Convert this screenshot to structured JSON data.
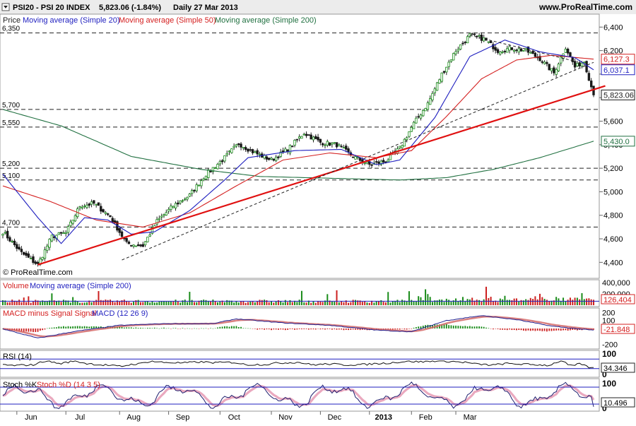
{
  "header": {
    "symbol": "PSI20 - PSI 20 INDEX",
    "quote": "5,823.06 (-1.84%)",
    "period": "Daily  27 Mar 2013",
    "site": "www.ProRealTime.com"
  },
  "copyright": "© ProRealTime.com",
  "colors": {
    "up": "#1a8c1a",
    "down": "#1a1a1a",
    "ma20": "#1f1fbf",
    "ma50": "#d42020",
    "ma200": "#207040",
    "trend": "#e01010",
    "volume_label": "#d42020",
    "macd_signal": "#d46a6a",
    "stoch_fill": "#e8a0b8"
  },
  "chart_data": [
    {
      "type": "candlestick",
      "panel": "price",
      "legend": [
        "Price",
        "Moving average (Simple 20)",
        "Moving average (Simple 50)",
        "Moving average (Simple 200)"
      ],
      "ylim": [
        4300,
        6450
      ],
      "y_ticks": [
        4400,
        4600,
        4800,
        5000,
        5200,
        5400,
        5600,
        5800,
        6000,
        6200,
        6400
      ],
      "y_tick_labels": [
        "4,400",
        "4,600",
        "4,800",
        "5,000",
        "5,200",
        "5,400",
        "5,600",
        "",
        "",
        "6,200",
        "6,400"
      ],
      "x_labels": [
        "Jun",
        "Jul",
        "Aug",
        "Sep",
        "Oct",
        "Nov",
        "Dec",
        "2013",
        "Feb",
        "Mar"
      ],
      "horizontal_levels": [
        {
          "value": 6350,
          "label": "6,350",
          "style": "dashed"
        },
        {
          "value": 5700,
          "label": "5,700",
          "style": "dashed"
        },
        {
          "value": 5550,
          "label": "5,550",
          "style": "dashed"
        },
        {
          "value": 5200,
          "label": "5,200",
          "style": "dashed"
        },
        {
          "value": 5100,
          "label": "5,100",
          "style": "dashed"
        },
        {
          "value": 4700,
          "label": "4,700",
          "style": "dashed"
        }
      ],
      "last_values": [
        {
          "name": "Moving average (Simple 50)",
          "label": "6,127.3",
          "value": 6127.3
        },
        {
          "name": "Moving average (Simple 20)",
          "label": "6,037.1",
          "value": 6037.1
        },
        {
          "name": "Price",
          "label": "5,823.06",
          "value": 5823.06
        },
        {
          "name": "Moving average (Simple 200)",
          "label": "5,430.0",
          "value": 5430.0
        }
      ],
      "close_anchors": [
        [
          0,
          4660
        ],
        [
          8,
          4480
        ],
        [
          15,
          4380
        ],
        [
          21,
          4620
        ],
        [
          27,
          4650
        ],
        [
          33,
          4880
        ],
        [
          39,
          4900
        ],
        [
          46,
          4790
        ],
        [
          53,
          4560
        ],
        [
          60,
          4540
        ],
        [
          66,
          4750
        ],
        [
          73,
          4880
        ],
        [
          80,
          4970
        ],
        [
          87,
          5150
        ],
        [
          94,
          5270
        ],
        [
          101,
          5410
        ],
        [
          108,
          5330
        ],
        [
          115,
          5270
        ],
        [
          122,
          5360
        ],
        [
          129,
          5500
        ],
        [
          136,
          5420
        ],
        [
          143,
          5400
        ],
        [
          150,
          5300
        ],
        [
          157,
          5230
        ],
        [
          164,
          5260
        ],
        [
          170,
          5370
        ],
        [
          176,
          5580
        ],
        [
          182,
          5750
        ],
        [
          188,
          6000
        ],
        [
          194,
          6200
        ],
        [
          200,
          6330
        ],
        [
          206,
          6300
        ],
        [
          212,
          6200
        ],
        [
          218,
          6220
        ],
        [
          224,
          6200
        ],
        [
          230,
          6130
        ],
        [
          236,
          6010
        ],
        [
          241,
          6230
        ],
        [
          245,
          6060
        ],
        [
          249,
          6110
        ],
        [
          253,
          5823
        ]
      ],
      "ma200_anchors": [
        [
          0,
          5700
        ],
        [
          25,
          5560
        ],
        [
          55,
          5300
        ],
        [
          85,
          5190
        ],
        [
          110,
          5130
        ],
        [
          150,
          5110
        ],
        [
          170,
          5100
        ],
        [
          190,
          5120
        ],
        [
          210,
          5190
        ],
        [
          230,
          5290
        ],
        [
          253,
          5430
        ]
      ],
      "ma50_anchors": [
        [
          0,
          5050
        ],
        [
          20,
          4920
        ],
        [
          40,
          4760
        ],
        [
          60,
          4700
        ],
        [
          80,
          4820
        ],
        [
          100,
          5050
        ],
        [
          120,
          5270
        ],
        [
          140,
          5330
        ],
        [
          160,
          5290
        ],
        [
          175,
          5350
        ],
        [
          190,
          5640
        ],
        [
          205,
          5960
        ],
        [
          220,
          6120
        ],
        [
          235,
          6160
        ],
        [
          253,
          6127.3
        ]
      ],
      "ma20_anchors": [
        [
          0,
          5150
        ],
        [
          15,
          4780
        ],
        [
          25,
          4560
        ],
        [
          35,
          4780
        ],
        [
          45,
          4760
        ],
        [
          55,
          4640
        ],
        [
          65,
          4660
        ],
        [
          80,
          4840
        ],
        [
          95,
          5100
        ],
        [
          105,
          5290
        ],
        [
          125,
          5350
        ],
        [
          145,
          5360
        ],
        [
          160,
          5230
        ],
        [
          170,
          5270
        ],
        [
          185,
          5630
        ],
        [
          200,
          6150
        ],
        [
          215,
          6290
        ],
        [
          230,
          6190
        ],
        [
          245,
          6140
        ],
        [
          253,
          6037.1
        ]
      ],
      "trendlines": [
        {
          "style": "solid",
          "color": "trend",
          "from": [
            15,
            4380
          ],
          "to": [
            260,
            5900
          ]
        },
        {
          "style": "dashed",
          "color": "dark",
          "from": [
            51,
            4420
          ],
          "to": [
            253,
            6100
          ]
        },
        {
          "style": "dashed",
          "color": "dark",
          "from": [
            200,
            6330
          ],
          "to": [
            245,
            6110
          ]
        }
      ]
    },
    {
      "type": "bar",
      "panel": "volume",
      "legend": [
        "Volume",
        "Moving average (Simple 200)"
      ],
      "ylim": [
        0,
        400000
      ],
      "y_tick_labels": [
        "400,000",
        "200,000"
      ],
      "last_value_label": "126,404"
    },
    {
      "type": "histogram-line",
      "panel": "macd",
      "legend": [
        "MACD minus Signal Signal",
        "MACD (12 26 9)"
      ],
      "ylim": [
        -220,
        220
      ],
      "y_tick_labels": [
        "200",
        "100",
        "-200"
      ],
      "last_value_label": "-21.848",
      "macd_anchors": [
        [
          0,
          -5
        ],
        [
          15,
          -120
        ],
        [
          30,
          -40
        ],
        [
          50,
          40
        ],
        [
          70,
          60
        ],
        [
          90,
          60
        ],
        [
          100,
          120
        ],
        [
          120,
          70
        ],
        [
          140,
          40
        ],
        [
          160,
          -20
        ],
        [
          175,
          -40
        ],
        [
          190,
          100
        ],
        [
          205,
          160
        ],
        [
          220,
          110
        ],
        [
          235,
          30
        ],
        [
          245,
          0
        ],
        [
          253,
          -21.8
        ]
      ]
    },
    {
      "type": "line",
      "panel": "rsi",
      "legend": [
        "RSI (14)"
      ],
      "ylim": [
        0,
        100
      ],
      "y_tick_labels": [
        "100",
        "0"
      ],
      "last_value_label": "34.346",
      "bands": [
        70,
        30
      ]
    },
    {
      "type": "line",
      "panel": "stochastic",
      "legend": [
        "Stoch %K",
        "Stoch %D (14 3 5)"
      ],
      "ylim": [
        0,
        100
      ],
      "y_tick_labels": [
        "100",
        "0"
      ],
      "last_value_labels": [
        "10.496"
      ],
      "bands": [
        80,
        20
      ]
    }
  ]
}
